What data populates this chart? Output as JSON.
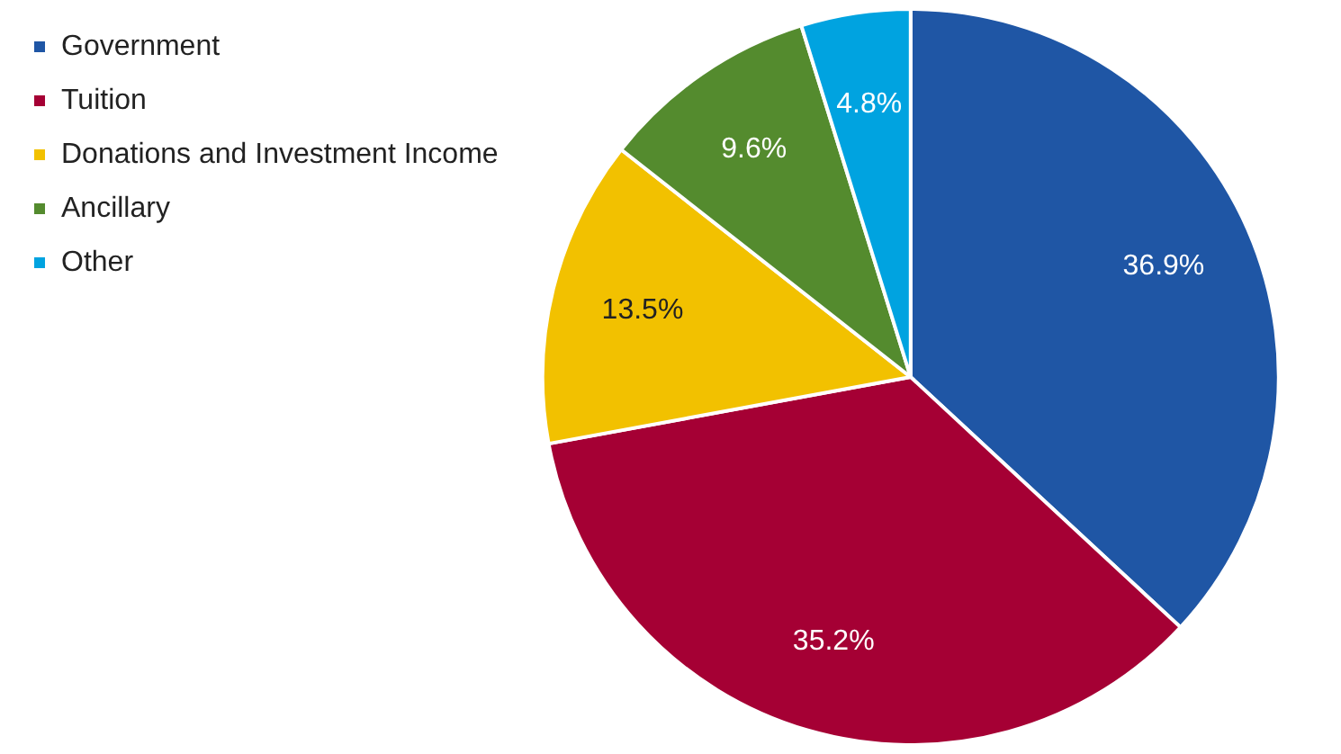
{
  "chart_data": {
    "type": "pie",
    "categories": [
      "Government",
      "Tuition",
      "Donations and Investment Income",
      "Ancillary",
      "Other"
    ],
    "values": [
      36.9,
      35.2,
      13.5,
      9.6,
      4.8
    ],
    "colors": [
      "#1f56a5",
      "#a50034",
      "#f2c100",
      "#548b2e",
      "#00a3e0"
    ],
    "value_labels": [
      "36.9%",
      "35.2%",
      "13.5%",
      "9.6%",
      "4.8%"
    ],
    "legend": "left"
  }
}
